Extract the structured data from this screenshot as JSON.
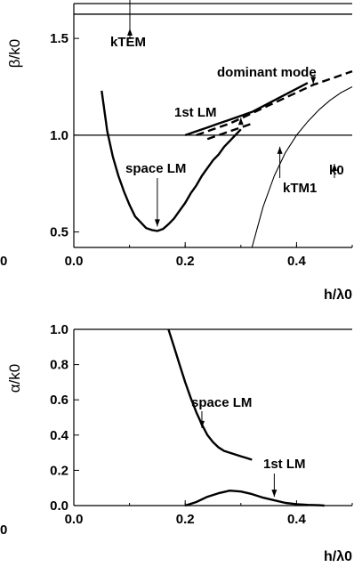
{
  "chart_data": [
    {
      "type": "line",
      "title": "",
      "xlabel": "h/λ0",
      "ylabel": "β/k0",
      "xlim": [
        0.0,
        0.5
      ],
      "ylim": [
        0.42,
        1.68
      ],
      "x_ticks": [
        0.0,
        0.2,
        0.4
      ],
      "x_tick_labels": [
        "0.0",
        "0.2",
        "0.4"
      ],
      "y_ticks": [
        0.5,
        1.0,
        1.5
      ],
      "y_tick_labels": [
        "0.5",
        "1.0",
        "1.5"
      ],
      "extra_tick_label": "0",
      "grid": false,
      "reference_lines": [
        {
          "label": "kTEM",
          "y": 1.625
        },
        {
          "label": "k0",
          "y": 1.0
        }
      ],
      "series": [
        {
          "x": [
            0.05,
            0.06,
            0.07,
            0.08,
            0.09,
            0.1,
            0.11,
            0.12,
            0.13,
            0.14,
            0.15,
            0.16,
            0.17,
            0.18,
            0.19,
            0.2,
            0.21,
            0.22,
            0.23,
            0.24,
            0.25,
            0.26,
            0.27,
            0.28,
            0.29,
            0.3
          ],
          "y": [
            1.23,
            1.02,
            0.89,
            0.79,
            0.71,
            0.64,
            0.58,
            0.55,
            0.52,
            0.51,
            0.505,
            0.515,
            0.54,
            0.57,
            0.61,
            0.65,
            0.7,
            0.74,
            0.79,
            0.83,
            0.87,
            0.9,
            0.94,
            0.97,
            1.0,
            1.03
          ],
          "style": "solid-thick"
        },
        {
          "x": [
            0.2,
            0.22,
            0.24,
            0.26,
            0.28,
            0.3,
            0.32,
            0.34,
            0.36,
            0.38,
            0.4,
            0.42
          ],
          "y": [
            1.0,
            1.02,
            1.04,
            1.06,
            1.08,
            1.1,
            1.12,
            1.15,
            1.18,
            1.21,
            1.24,
            1.27
          ],
          "style": "solid-thick"
        },
        {
          "x": [
            0.22,
            0.25,
            0.28,
            0.31,
            0.34,
            0.37,
            0.4,
            0.43,
            0.46,
            0.5
          ],
          "y": [
            1.0,
            1.03,
            1.06,
            1.1,
            1.14,
            1.18,
            1.22,
            1.26,
            1.29,
            1.33
          ],
          "style": "dashed"
        },
        {
          "x": [
            0.24,
            0.26,
            0.28,
            0.3,
            0.32
          ],
          "y": [
            0.98,
            1.0,
            1.02,
            1.04,
            1.06
          ],
          "style": "dashed"
        },
        {
          "x": [
            0.32,
            0.34,
            0.36,
            0.38,
            0.4,
            0.42,
            0.44,
            0.46,
            0.48,
            0.5
          ],
          "y": [
            0.42,
            0.63,
            0.79,
            0.91,
            1.0,
            1.07,
            1.13,
            1.18,
            1.22,
            1.25
          ],
          "style": "solid-thin"
        }
      ],
      "annotations": [
        {
          "text": "dominant mode",
          "target": [
            0.43,
            1.265
          ]
        },
        {
          "text": "1st LM",
          "target": [
            0.3,
            1.09
          ]
        },
        {
          "text": "space LM",
          "target": [
            0.15,
            0.51
          ]
        },
        {
          "text": "kTM1",
          "target": [
            0.37,
            0.94
          ]
        }
      ]
    },
    {
      "type": "line",
      "title": "",
      "xlabel": "h/λ0",
      "ylabel": "α/k0",
      "xlim": [
        0.0,
        0.5
      ],
      "ylim": [
        0.0,
        1.0
      ],
      "x_ticks": [
        0.0,
        0.2,
        0.4
      ],
      "x_tick_labels": [
        "0.0",
        "0.2",
        "0.4"
      ],
      "y_ticks": [
        0.0,
        0.2,
        0.4,
        0.6,
        0.8,
        1.0
      ],
      "y_tick_labels": [
        "0.0",
        "0.2",
        "0.4",
        "0.6",
        "0.8",
        "1.0"
      ],
      "extra_tick_label": "0",
      "grid": false,
      "series": [
        {
          "x": [
            0.17,
            0.18,
            0.19,
            0.2,
            0.21,
            0.22,
            0.23,
            0.24,
            0.25,
            0.26,
            0.27,
            0.28,
            0.29,
            0.3,
            0.31,
            0.32
          ],
          "y": [
            1.0,
            0.9,
            0.8,
            0.7,
            0.61,
            0.53,
            0.46,
            0.4,
            0.36,
            0.33,
            0.31,
            0.3,
            0.29,
            0.28,
            0.27,
            0.26
          ],
          "style": "solid-thick"
        },
        {
          "x": [
            0.2,
            0.22,
            0.24,
            0.26,
            0.28,
            0.3,
            0.32,
            0.34,
            0.36,
            0.38,
            0.4,
            0.42,
            0.44,
            0.45
          ],
          "y": [
            0.0,
            0.02,
            0.05,
            0.07,
            0.085,
            0.08,
            0.065,
            0.045,
            0.03,
            0.015,
            0.008,
            0.004,
            0.002,
            0.0
          ],
          "style": "solid-thick"
        }
      ],
      "annotations": [
        {
          "text": "space LM",
          "target": [
            0.23,
            0.44
          ]
        },
        {
          "text": "1st LM",
          "target": [
            0.36,
            0.05
          ]
        }
      ]
    }
  ]
}
